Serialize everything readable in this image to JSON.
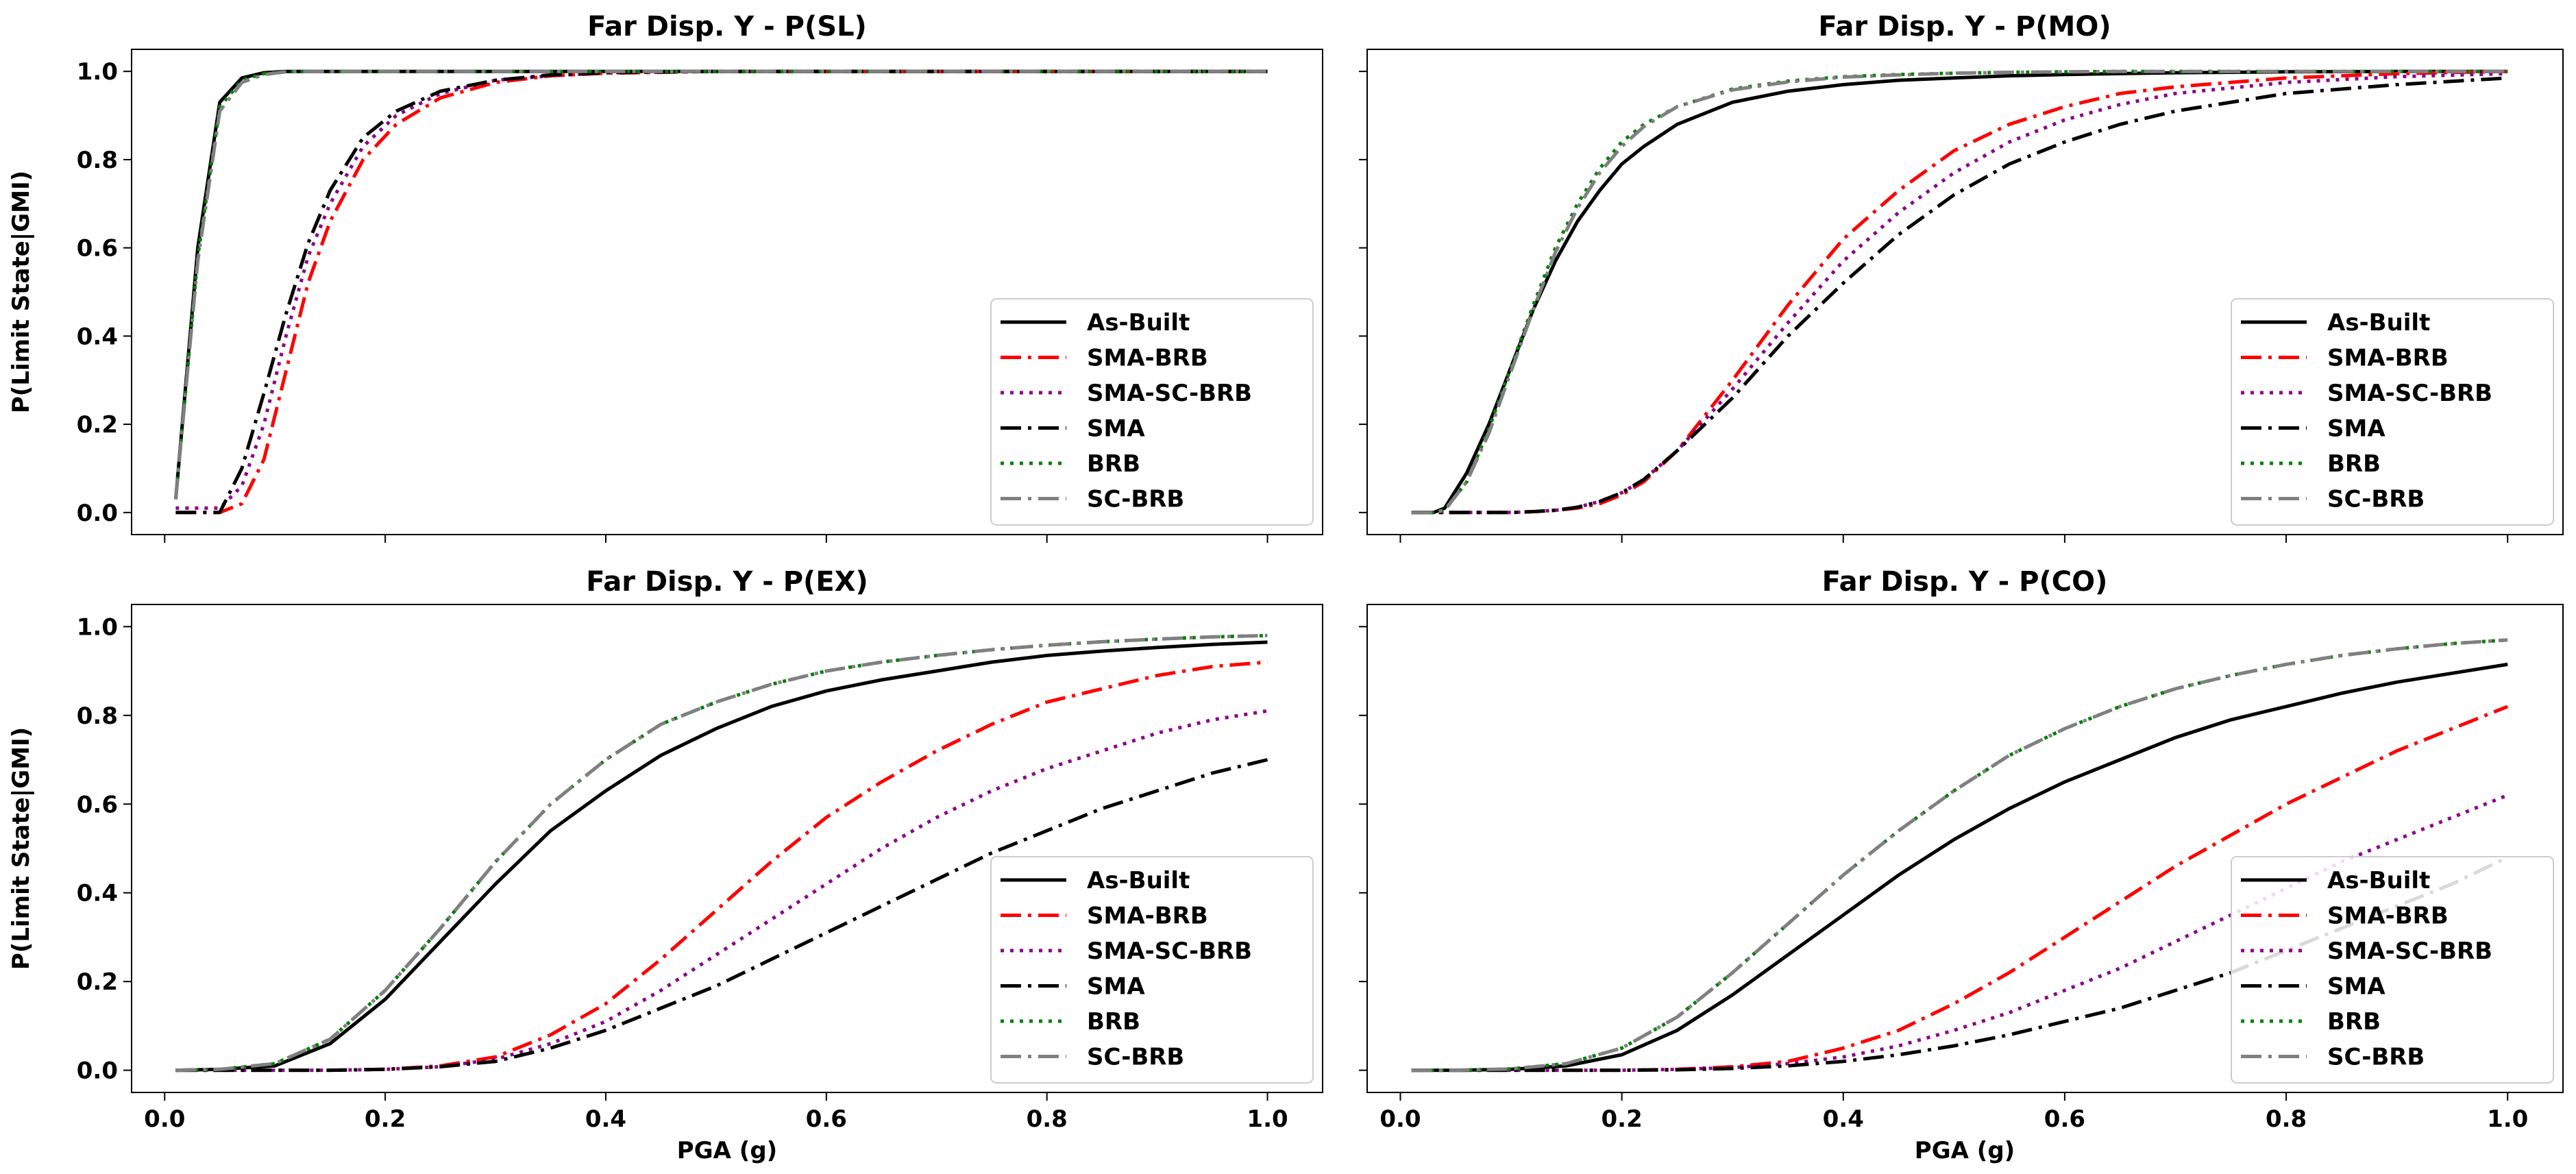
{
  "figure": {
    "ylabel": "P(Limit State|GMI)",
    "xlabel": "PGA (g)"
  },
  "styles": {
    "As-Built": {
      "color": "#000000",
      "dash": "",
      "width": 5
    },
    "SMA-BRB": {
      "color": "#ff0000",
      "dash": "30,10,5,10",
      "width": 5
    },
    "SMA-SC-BRB": {
      "color": "#8b008b",
      "dash": "5,9",
      "width": 5
    },
    "SMA": {
      "color": "#000000",
      "dash": "30,10,5,10",
      "width": 5
    },
    "BRB": {
      "color": "#008000",
      "dash": "5,9",
      "width": 5
    },
    "SC-BRB": {
      "color": "#808080",
      "dash": "30,10,5,10",
      "width": 5
    }
  },
  "chart_data": [
    {
      "type": "line",
      "title": "Far Disp. Y - P(SL)",
      "xlabel": "",
      "ylabel": "P(Limit State|GMI)",
      "xlim": [
        -0.03,
        1.05
      ],
      "ylim": [
        -0.05,
        1.05
      ],
      "xticks": [
        "0.0",
        "0.2",
        "0.4",
        "0.6",
        "0.8",
        "1.0"
      ],
      "yticks": [
        "0.0",
        "0.2",
        "0.4",
        "0.6",
        "0.8",
        "1.0"
      ],
      "legend": "lower-right",
      "x": [
        0.01,
        0.03,
        0.05,
        0.07,
        0.09,
        0.11,
        0.13,
        0.15,
        0.18,
        0.21,
        0.25,
        0.3,
        0.35,
        0.4,
        0.5,
        0.6,
        0.7,
        0.8,
        0.9,
        1.0
      ],
      "series": [
        {
          "name": "As-Built",
          "values": [
            0.03,
            0.6,
            0.93,
            0.985,
            0.997,
            1.0,
            1.0,
            1.0,
            1.0,
            1.0,
            1.0,
            1.0,
            1.0,
            1.0,
            1.0,
            1.0,
            1.0,
            1.0,
            1.0,
            1.0
          ]
        },
        {
          "name": "SMA-BRB",
          "values": [
            0.0,
            0.0,
            0.0,
            0.02,
            0.12,
            0.32,
            0.52,
            0.66,
            0.8,
            0.88,
            0.94,
            0.975,
            0.99,
            0.996,
            1.0,
            1.0,
            1.0,
            1.0,
            1.0,
            1.0
          ]
        },
        {
          "name": "SMA-SC-BRB",
          "values": [
            0.01,
            0.01,
            0.01,
            0.06,
            0.2,
            0.4,
            0.58,
            0.7,
            0.83,
            0.9,
            0.95,
            0.98,
            0.99,
            0.997,
            1.0,
            1.0,
            1.0,
            1.0,
            1.0,
            1.0
          ]
        },
        {
          "name": "SMA",
          "values": [
            0.0,
            0.0,
            0.0,
            0.1,
            0.27,
            0.45,
            0.61,
            0.73,
            0.85,
            0.91,
            0.955,
            0.98,
            0.992,
            0.997,
            1.0,
            1.0,
            1.0,
            1.0,
            1.0,
            1.0
          ]
        },
        {
          "name": "BRB",
          "values": [
            0.03,
            0.58,
            0.92,
            0.98,
            0.995,
            0.999,
            1.0,
            1.0,
            1.0,
            1.0,
            1.0,
            1.0,
            1.0,
            1.0,
            1.0,
            1.0,
            1.0,
            1.0,
            1.0,
            1.0
          ]
        },
        {
          "name": "SC-BRB",
          "values": [
            0.03,
            0.57,
            0.91,
            0.975,
            0.993,
            0.999,
            1.0,
            1.0,
            1.0,
            1.0,
            1.0,
            1.0,
            1.0,
            1.0,
            1.0,
            1.0,
            1.0,
            1.0,
            1.0,
            1.0
          ]
        }
      ]
    },
    {
      "type": "line",
      "title": "Far Disp. Y - P(MO)",
      "xlabel": "",
      "ylabel": "",
      "xlim": [
        -0.03,
        1.05
      ],
      "ylim": [
        -0.05,
        1.05
      ],
      "xticks": [
        "0.0",
        "0.2",
        "0.4",
        "0.6",
        "0.8",
        "1.0"
      ],
      "yticks": [
        "",
        "",
        "",
        "",
        "",
        ""
      ],
      "legend": "lower-right",
      "x": [
        0.01,
        0.03,
        0.04,
        0.06,
        0.08,
        0.1,
        0.12,
        0.14,
        0.16,
        0.18,
        0.2,
        0.22,
        0.25,
        0.3,
        0.35,
        0.4,
        0.45,
        0.5,
        0.55,
        0.6,
        0.65,
        0.7,
        0.8,
        0.9,
        1.0
      ],
      "series": [
        {
          "name": "As-Built",
          "values": [
            0.0,
            0.0,
            0.01,
            0.09,
            0.2,
            0.33,
            0.46,
            0.57,
            0.66,
            0.73,
            0.79,
            0.83,
            0.88,
            0.93,
            0.955,
            0.97,
            0.98,
            0.985,
            0.99,
            0.993,
            0.995,
            0.997,
            0.999,
            1.0,
            1.0
          ]
        },
        {
          "name": "SMA-BRB",
          "values": [
            0.0,
            0.0,
            0.0,
            0.0,
            0.0,
            0.0,
            0.002,
            0.005,
            0.01,
            0.02,
            0.04,
            0.07,
            0.14,
            0.3,
            0.47,
            0.62,
            0.73,
            0.82,
            0.88,
            0.92,
            0.95,
            0.965,
            0.985,
            0.995,
            1.0
          ]
        },
        {
          "name": "SMA-SC-BRB",
          "values": [
            0.0,
            0.0,
            0.0,
            0.0,
            0.0,
            0.0,
            0.002,
            0.005,
            0.012,
            0.025,
            0.045,
            0.075,
            0.14,
            0.28,
            0.43,
            0.57,
            0.68,
            0.77,
            0.84,
            0.89,
            0.925,
            0.95,
            0.975,
            0.988,
            0.995
          ]
        },
        {
          "name": "SMA",
          "values": [
            0.0,
            0.0,
            0.0,
            0.0,
            0.0,
            0.0,
            0.002,
            0.005,
            0.012,
            0.025,
            0.045,
            0.075,
            0.14,
            0.26,
            0.4,
            0.52,
            0.63,
            0.72,
            0.79,
            0.84,
            0.88,
            0.91,
            0.95,
            0.97,
            0.985
          ]
        },
        {
          "name": "BRB",
          "values": [
            0.0,
            0.0,
            0.005,
            0.07,
            0.19,
            0.33,
            0.47,
            0.6,
            0.7,
            0.78,
            0.84,
            0.88,
            0.92,
            0.96,
            0.978,
            0.988,
            0.993,
            0.996,
            0.998,
            0.999,
            1.0,
            1.0,
            1.0,
            1.0,
            1.0
          ]
        },
        {
          "name": "SC-BRB",
          "values": [
            0.0,
            0.0,
            0.005,
            0.07,
            0.18,
            0.32,
            0.46,
            0.59,
            0.69,
            0.77,
            0.83,
            0.875,
            0.92,
            0.958,
            0.976,
            0.987,
            0.992,
            0.996,
            0.998,
            0.999,
            1.0,
            1.0,
            1.0,
            1.0,
            1.0
          ]
        }
      ]
    },
    {
      "type": "line",
      "title": "Far Disp. Y - P(EX)",
      "xlabel": "PGA (g)",
      "ylabel": "P(Limit State|GMI)",
      "xlim": [
        -0.03,
        1.05
      ],
      "ylim": [
        -0.05,
        1.05
      ],
      "xticks": [
        "0.0",
        "0.2",
        "0.4",
        "0.6",
        "0.8",
        "1.0"
      ],
      "yticks": [
        "0.0",
        "0.2",
        "0.4",
        "0.6",
        "0.8",
        "1.0"
      ],
      "legend": "lower-right",
      "x": [
        0.01,
        0.05,
        0.1,
        0.15,
        0.2,
        0.25,
        0.3,
        0.35,
        0.4,
        0.45,
        0.5,
        0.55,
        0.6,
        0.65,
        0.7,
        0.75,
        0.8,
        0.85,
        0.9,
        0.95,
        1.0
      ],
      "series": [
        {
          "name": "As-Built",
          "values": [
            0.0,
            0.002,
            0.01,
            0.06,
            0.16,
            0.29,
            0.42,
            0.54,
            0.63,
            0.71,
            0.77,
            0.82,
            0.855,
            0.88,
            0.9,
            0.92,
            0.935,
            0.945,
            0.953,
            0.96,
            0.965
          ]
        },
        {
          "name": "SMA-BRB",
          "values": [
            0.0,
            0.0,
            0.0,
            0.0,
            0.002,
            0.01,
            0.03,
            0.08,
            0.15,
            0.25,
            0.36,
            0.47,
            0.57,
            0.65,
            0.72,
            0.78,
            0.83,
            0.86,
            0.89,
            0.91,
            0.92
          ]
        },
        {
          "name": "SMA-SC-BRB",
          "values": [
            0.0,
            0.0,
            0.0,
            0.0,
            0.002,
            0.008,
            0.025,
            0.06,
            0.11,
            0.18,
            0.26,
            0.34,
            0.42,
            0.5,
            0.57,
            0.63,
            0.68,
            0.72,
            0.76,
            0.79,
            0.81
          ]
        },
        {
          "name": "SMA",
          "values": [
            0.0,
            0.0,
            0.0,
            0.0,
            0.002,
            0.008,
            0.02,
            0.05,
            0.09,
            0.14,
            0.19,
            0.25,
            0.31,
            0.37,
            0.43,
            0.49,
            0.54,
            0.59,
            0.63,
            0.67,
            0.7
          ]
        },
        {
          "name": "BRB",
          "values": [
            0.0,
            0.002,
            0.015,
            0.07,
            0.18,
            0.32,
            0.47,
            0.6,
            0.7,
            0.78,
            0.83,
            0.87,
            0.9,
            0.92,
            0.935,
            0.948,
            0.958,
            0.966,
            0.972,
            0.977,
            0.98
          ]
        },
        {
          "name": "SC-BRB",
          "values": [
            0.0,
            0.002,
            0.015,
            0.07,
            0.18,
            0.32,
            0.47,
            0.6,
            0.7,
            0.78,
            0.83,
            0.87,
            0.9,
            0.92,
            0.935,
            0.948,
            0.958,
            0.966,
            0.972,
            0.977,
            0.98
          ]
        }
      ]
    },
    {
      "type": "line",
      "title": "Far Disp. Y - P(CO)",
      "xlabel": "PGA (g)",
      "ylabel": "",
      "xlim": [
        -0.03,
        1.05
      ],
      "ylim": [
        -0.05,
        1.05
      ],
      "xticks": [
        "0.0",
        "0.2",
        "0.4",
        "0.6",
        "0.8",
        "1.0"
      ],
      "yticks": [
        "",
        "",
        "",
        "",
        "",
        ""
      ],
      "legend": "lower-right",
      "x": [
        0.01,
        0.05,
        0.1,
        0.15,
        0.2,
        0.25,
        0.3,
        0.35,
        0.4,
        0.45,
        0.5,
        0.55,
        0.6,
        0.65,
        0.7,
        0.75,
        0.8,
        0.85,
        0.9,
        0.95,
        1.0
      ],
      "series": [
        {
          "name": "As-Built",
          "values": [
            0.0,
            0.0,
            0.002,
            0.01,
            0.035,
            0.09,
            0.17,
            0.26,
            0.35,
            0.44,
            0.52,
            0.59,
            0.65,
            0.7,
            0.75,
            0.79,
            0.82,
            0.85,
            0.875,
            0.895,
            0.915
          ]
        },
        {
          "name": "SMA-BRB",
          "values": [
            0.0,
            0.0,
            0.0,
            0.0,
            0.0,
            0.002,
            0.008,
            0.02,
            0.05,
            0.09,
            0.15,
            0.22,
            0.3,
            0.38,
            0.46,
            0.53,
            0.6,
            0.66,
            0.72,
            0.77,
            0.82
          ]
        },
        {
          "name": "SMA-SC-BRB",
          "values": [
            0.0,
            0.0,
            0.0,
            0.0,
            0.0,
            0.002,
            0.006,
            0.015,
            0.03,
            0.055,
            0.09,
            0.13,
            0.18,
            0.23,
            0.29,
            0.35,
            0.41,
            0.47,
            0.52,
            0.57,
            0.62
          ]
        },
        {
          "name": "SMA",
          "values": [
            0.0,
            0.0,
            0.0,
            0.0,
            0.0,
            0.001,
            0.004,
            0.01,
            0.02,
            0.035,
            0.055,
            0.08,
            0.11,
            0.14,
            0.18,
            0.22,
            0.27,
            0.32,
            0.37,
            0.42,
            0.48
          ]
        },
        {
          "name": "BRB",
          "values": [
            0.0,
            0.0,
            0.003,
            0.015,
            0.05,
            0.12,
            0.22,
            0.33,
            0.44,
            0.54,
            0.63,
            0.71,
            0.77,
            0.82,
            0.86,
            0.89,
            0.915,
            0.935,
            0.95,
            0.962,
            0.97
          ]
        },
        {
          "name": "SC-BRB",
          "values": [
            0.0,
            0.0,
            0.003,
            0.015,
            0.05,
            0.12,
            0.22,
            0.33,
            0.44,
            0.54,
            0.63,
            0.71,
            0.77,
            0.82,
            0.86,
            0.89,
            0.915,
            0.935,
            0.95,
            0.962,
            0.97
          ]
        }
      ]
    }
  ]
}
